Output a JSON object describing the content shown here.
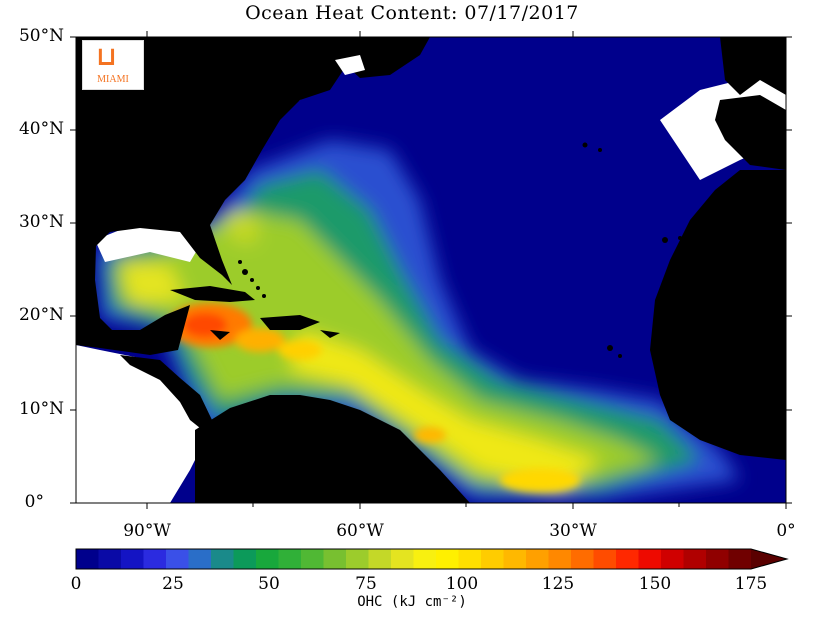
{
  "title": "Ocean Heat Content: 07/17/2017",
  "logo": {
    "letters": "U",
    "text": "MIAMI"
  },
  "y_axis": {
    "ticks": [
      "50°N",
      "40°N",
      "30°N",
      "20°N",
      "10°N",
      "0°"
    ]
  },
  "x_axis": {
    "ticks": [
      "90°W",
      "60°W",
      "30°W",
      "0°"
    ]
  },
  "colorbar": {
    "labels": [
      "0",
      "25",
      "50",
      "75",
      "100",
      "125",
      "150",
      "175"
    ],
    "units": "OHC (kJ cm⁻²)",
    "colors": [
      "#00008c",
      "#0a0aa6",
      "#1414c4",
      "#2b2be0",
      "#3a50e8",
      "#2a6ec8",
      "#1a8a8a",
      "#0c9a5a",
      "#18a83c",
      "#30b038",
      "#50b834",
      "#78c030",
      "#9ccc2c",
      "#c4d828",
      "#e4e420",
      "#f8f010",
      "#fff000",
      "#ffe000",
      "#ffcc00",
      "#ffb800",
      "#ffa000",
      "#ff8800",
      "#ff6c00",
      "#ff4c00",
      "#ff2800",
      "#ee0a00",
      "#d00000",
      "#b00000",
      "#900000",
      "#700000"
    ],
    "extend_color": "#5a0000"
  },
  "map": {
    "land_color": "#000000",
    "ocean_base": "#00008c"
  }
}
